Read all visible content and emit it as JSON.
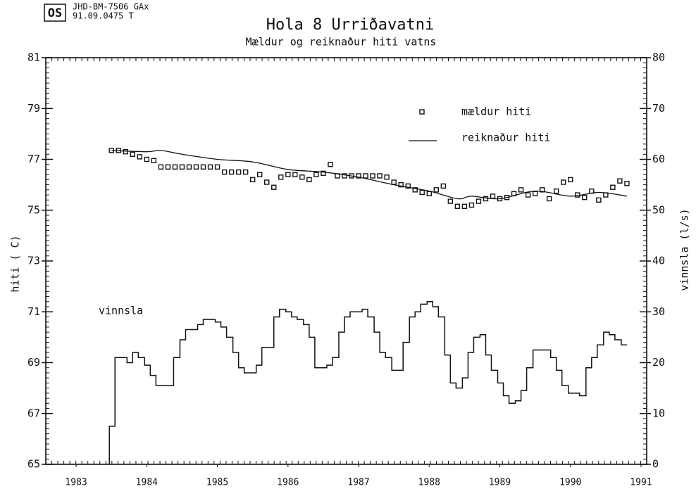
{
  "chart_data": {
    "type": "line",
    "header": [
      "JHD-BM-7506 GAx",
      "91.09.0475  T"
    ],
    "logo": "OS",
    "title": "Hola 8 Urriðavatni",
    "subtitle": "Mældur og reiknaður hiti vatns",
    "ylabel": "hiti ( C)",
    "y2label": "vinnsla (l/s)",
    "annotation": "vinnsla",
    "legend": "upper right",
    "xlim": [
      1982.57,
      1991.08
    ],
    "xticks": [
      1983,
      1984,
      1985,
      1986,
      1987,
      1988,
      1989,
      1990,
      1991
    ],
    "ylim": [
      65,
      81
    ],
    "yticks": [
      65,
      67,
      69,
      71,
      73,
      75,
      77,
      79,
      81
    ],
    "y2lim": [
      0,
      80
    ],
    "y2ticks": [
      0,
      10,
      20,
      30,
      40,
      50,
      60,
      70,
      80
    ],
    "series": [
      {
        "name": "mældur hiti",
        "mode": "markers",
        "color": "#111111",
        "x": [
          1983.5,
          1983.6,
          1983.7,
          1983.8,
          1983.9,
          1984.0,
          1984.1,
          1984.2,
          1984.3,
          1984.4,
          1984.5,
          1984.6,
          1984.7,
          1984.8,
          1984.9,
          1985.0,
          1985.1,
          1985.2,
          1985.3,
          1985.4,
          1985.5,
          1985.6,
          1985.7,
          1985.8,
          1985.9,
          1986.0,
          1986.1,
          1986.2,
          1986.3,
          1986.4,
          1986.5,
          1986.6,
          1986.7,
          1986.8,
          1986.9,
          1987.0,
          1987.1,
          1987.2,
          1987.3,
          1987.4,
          1987.5,
          1987.6,
          1987.7,
          1987.8,
          1987.9,
          1988.0,
          1988.1,
          1988.2,
          1988.3,
          1988.4,
          1988.5,
          1988.6,
          1988.7,
          1988.8,
          1988.9,
          1989.0,
          1989.1,
          1989.2,
          1989.3,
          1989.4,
          1989.5,
          1989.6,
          1989.7,
          1989.8,
          1989.9,
          1990.0,
          1990.1,
          1990.2,
          1990.3,
          1990.4,
          1990.5,
          1990.6,
          1990.7,
          1990.8
        ],
        "values": [
          77.35,
          77.35,
          77.3,
          77.2,
          77.1,
          77.0,
          76.95,
          76.7,
          76.7,
          76.7,
          76.7,
          76.7,
          76.7,
          76.7,
          76.7,
          76.7,
          76.5,
          76.5,
          76.5,
          76.5,
          76.2,
          76.4,
          76.1,
          75.9,
          76.3,
          76.4,
          76.4,
          76.3,
          76.2,
          76.4,
          76.45,
          76.8,
          76.35,
          76.35,
          76.35,
          76.35,
          76.35,
          76.35,
          76.35,
          76.3,
          76.1,
          76.0,
          75.95,
          75.8,
          75.7,
          75.65,
          75.8,
          75.95,
          75.35,
          75.15,
          75.15,
          75.2,
          75.35,
          75.45,
          75.55,
          75.45,
          75.5,
          75.65,
          75.8,
          75.6,
          75.65,
          75.8,
          75.45,
          75.75,
          76.1,
          76.2,
          75.6,
          75.5,
          75.75,
          75.4,
          75.6,
          75.9,
          76.15,
          76.05
        ]
      },
      {
        "name": "reiknaður hiti",
        "mode": "line",
        "color": "#111111",
        "x": [
          1983.5,
          1984.0,
          1984.2,
          1984.5,
          1985.0,
          1985.5,
          1986.0,
          1986.5,
          1987.0,
          1987.5,
          1988.0,
          1988.4,
          1988.6,
          1989.0,
          1989.5,
          1990.0,
          1990.4,
          1990.8
        ],
        "values": [
          77.35,
          77.3,
          77.35,
          77.2,
          77.0,
          76.9,
          76.6,
          76.5,
          76.3,
          76.0,
          75.75,
          75.45,
          75.55,
          75.45,
          75.75,
          75.55,
          75.7,
          75.55
        ]
      },
      {
        "mode": "step",
        "axis": "y2",
        "color": "#111111",
        "x": [
          1983.47,
          1983.55,
          1983.63,
          1983.72,
          1983.8,
          1983.88,
          1983.97,
          1984.05,
          1984.13,
          1984.22,
          1984.3,
          1984.38,
          1984.47,
          1984.55,
          1984.63,
          1984.72,
          1984.8,
          1984.88,
          1984.97,
          1985.05,
          1985.13,
          1985.22,
          1985.3,
          1985.38,
          1985.47,
          1985.55,
          1985.63,
          1985.72,
          1985.8,
          1985.88,
          1985.97,
          1986.05,
          1986.13,
          1986.22,
          1986.3,
          1986.38,
          1986.47,
          1986.55,
          1986.63,
          1986.72,
          1986.8,
          1986.88,
          1986.97,
          1987.05,
          1987.13,
          1987.22,
          1987.3,
          1987.38,
          1987.47,
          1987.55,
          1987.63,
          1987.72,
          1987.8,
          1987.88,
          1987.97,
          1988.05,
          1988.13,
          1988.22,
          1988.3,
          1988.38,
          1988.47,
          1988.55,
          1988.63,
          1988.72,
          1988.8,
          1988.88,
          1988.97,
          1989.05,
          1989.13,
          1989.22,
          1989.3,
          1989.38,
          1989.47,
          1989.55,
          1989.63,
          1989.72,
          1989.8,
          1989.88,
          1989.97,
          1990.05,
          1990.13,
          1990.22,
          1990.3,
          1990.38,
          1990.47,
          1990.55,
          1990.63,
          1990.72
        ],
        "values": [
          7.5,
          21,
          21,
          20,
          22,
          21,
          19.5,
          17.5,
          15.5,
          15.5,
          15.5,
          21,
          24.5,
          26.5,
          26.5,
          27.5,
          28.5,
          28.5,
          28,
          27,
          25,
          22,
          19,
          18,
          18,
          19.5,
          23,
          23,
          29,
          30.5,
          30,
          29,
          28.5,
          27.5,
          25,
          19,
          19,
          19.5,
          21,
          26,
          29,
          30,
          30,
          30.5,
          29,
          26,
          22,
          21,
          18.5,
          18.5,
          24,
          29,
          30,
          31.5,
          32,
          31,
          29,
          21.5,
          16,
          15,
          17,
          22,
          25,
          25.5,
          21.5,
          18.5,
          16,
          13.5,
          12,
          12.5,
          14.5,
          19,
          22.5,
          22.5,
          22.5,
          21,
          18.5,
          15.5,
          14,
          14,
          13.5,
          19,
          21,
          23.5,
          26,
          25.5,
          24.5,
          23.5
        ]
      }
    ]
  }
}
